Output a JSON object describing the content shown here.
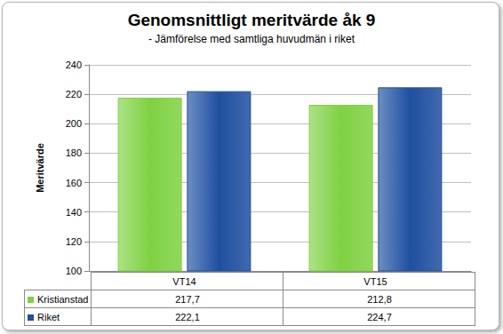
{
  "chart_data": {
    "type": "bar",
    "title": "Genomsnittligt meritvärde åk 9",
    "subtitle": "- Jämförelse med samtliga huvudmän i riket",
    "y_label": "Meritvärde",
    "categories": [
      "VT14",
      "VT15"
    ],
    "series": [
      {
        "name": "Kristianstad",
        "color": "#7fd142",
        "values": [
          217.7,
          212.8
        ],
        "value_labels": [
          "217,7",
          "212,8"
        ]
      },
      {
        "name": "Riket",
        "color": "#1f4fa0",
        "values": [
          222.1,
          224.7
        ],
        "value_labels": [
          "222,1",
          "224,7"
        ]
      }
    ],
    "ylim": [
      100,
      240
    ],
    "yticks": [
      100,
      120,
      140,
      160,
      180,
      200,
      220,
      240
    ],
    "grid": true,
    "legend": "bottom"
  }
}
